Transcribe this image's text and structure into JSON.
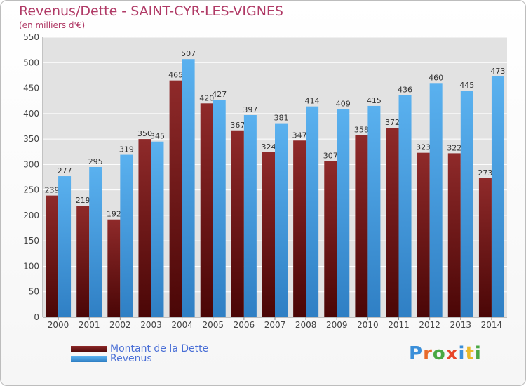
{
  "title": "Revenus/Dette - SAINT-CYR-LES-VIGNES",
  "subtitle": "(en milliers d'€)",
  "logo": {
    "text": "Proxiti",
    "letters": [
      "P",
      "r",
      "o",
      "x",
      "i",
      "t",
      "i"
    ],
    "colors": [
      "#3b8fd9",
      "#e86a2a",
      "#49a843",
      "#e8462a",
      "#3b8fd9",
      "#e8b92a",
      "#49a843"
    ]
  },
  "chart_data": {
    "type": "bar",
    "categories": [
      "2000",
      "2001",
      "2002",
      "2003",
      "2004",
      "2005",
      "2006",
      "2007",
      "2008",
      "2009",
      "2010",
      "2011",
      "2012",
      "2013",
      "2014"
    ],
    "series": [
      {
        "name": "Montant de la Dette",
        "color": "#7a1f1f",
        "values": [
          239,
          219,
          192,
          350,
          465,
          420,
          367,
          324,
          347,
          307,
          358,
          372,
          323,
          322,
          273
        ]
      },
      {
        "name": "Revenus",
        "color": "#4aa3e6",
        "values": [
          277,
          295,
          319,
          345,
          507,
          427,
          397,
          381,
          414,
          409,
          415,
          436,
          460,
          445,
          473
        ]
      }
    ],
    "ylim": [
      0,
      550
    ],
    "yticks": [
      0,
      50,
      100,
      150,
      200,
      250,
      300,
      350,
      400,
      450,
      500,
      550
    ],
    "grid": true,
    "legend_position": "bottom-left"
  }
}
